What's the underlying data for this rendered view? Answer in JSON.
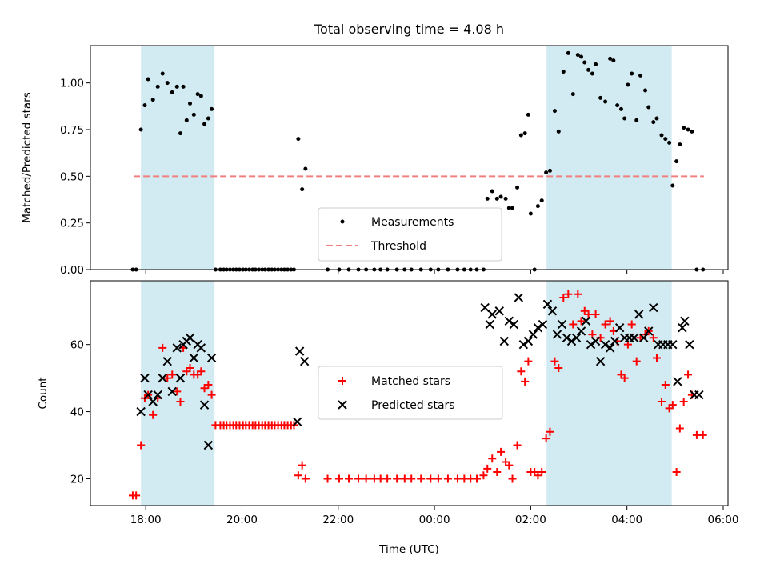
{
  "chart_data": [
    {
      "type": "scatter",
      "title": "Total observing time = 4.08 h",
      "ylabel": "Matched/Predicted stars",
      "xlabel": "",
      "x_unit": "hours (UTC)",
      "xlim": [
        16.85,
        30.1
      ],
      "ylim": [
        0.0,
        1.2
      ],
      "yticks": [
        "0.00",
        "0.25",
        "0.50",
        "0.75",
        "1.00"
      ],
      "ytick_values": [
        0,
        0.25,
        0.5,
        0.75,
        1.0
      ],
      "grid": false,
      "legend_position": "center",
      "shaded_intervals": [
        [
          17.9,
          19.43
        ],
        [
          26.33,
          28.93
        ]
      ],
      "shade_color": "#add8e6",
      "threshold": {
        "name": "Threshold",
        "value": 0.5,
        "x_range": [
          17.75,
          29.6
        ],
        "color": "#f08080",
        "style": "dashed"
      },
      "series": [
        {
          "name": "Measurements",
          "color": "#000000",
          "marker": "dot",
          "x": [
            17.73,
            17.8,
            17.9,
            17.98,
            18.05,
            18.15,
            18.25,
            18.35,
            18.45,
            18.55,
            18.65,
            18.72,
            18.78,
            18.85,
            18.92,
            19.0,
            19.08,
            19.15,
            19.22,
            19.3,
            19.37,
            19.45,
            19.55,
            19.62,
            19.68,
            19.75,
            19.82,
            19.88,
            19.95,
            20.02,
            20.08,
            20.15,
            20.22,
            20.28,
            20.35,
            20.42,
            20.48,
            20.55,
            20.62,
            20.68,
            20.75,
            20.82,
            20.88,
            20.95,
            21.02,
            21.08,
            21.17,
            21.25,
            21.32,
            21.78,
            22.02,
            22.22,
            22.42,
            22.58,
            22.75,
            22.88,
            23.02,
            23.22,
            23.38,
            23.52,
            23.72,
            23.92,
            24.08,
            24.28,
            24.48,
            24.62,
            24.75,
            24.88,
            25.02,
            25.1,
            25.2,
            25.3,
            25.38,
            25.48,
            25.55,
            25.62,
            25.72,
            25.8,
            25.88,
            25.95,
            26.0,
            26.08,
            26.15,
            26.23,
            26.32,
            26.4,
            26.5,
            26.58,
            26.68,
            26.78,
            26.88,
            26.98,
            27.05,
            27.12,
            27.2,
            27.28,
            27.35,
            27.45,
            27.55,
            27.65,
            27.72,
            27.8,
            27.88,
            27.95,
            28.02,
            28.1,
            28.2,
            28.28,
            28.38,
            28.45,
            28.55,
            28.62,
            28.72,
            28.8,
            28.88,
            28.95,
            29.03,
            29.1,
            29.18,
            29.27,
            29.35,
            29.45,
            29.58
          ],
          "y": [
            0.0,
            0.0,
            0.75,
            0.88,
            1.02,
            0.91,
            0.98,
            1.05,
            1.0,
            0.95,
            0.98,
            0.73,
            0.98,
            0.8,
            0.89,
            0.83,
            0.94,
            0.93,
            0.78,
            0.81,
            0.86,
            0.0,
            0.0,
            0.0,
            0.0,
            0.0,
            0.0,
            0.0,
            0.0,
            0.0,
            0.0,
            0.0,
            0.0,
            0.0,
            0.0,
            0.0,
            0.0,
            0.0,
            0.0,
            0.0,
            0.0,
            0.0,
            0.0,
            0.0,
            0.0,
            0.0,
            0.7,
            0.43,
            0.54,
            0.0,
            0.0,
            0.0,
            0.0,
            0.0,
            0.0,
            0.0,
            0.0,
            0.0,
            0.0,
            0.0,
            0.0,
            0.0,
            0.0,
            0.0,
            0.0,
            0.0,
            0.0,
            0.0,
            0.0,
            0.38,
            0.42,
            0.38,
            0.39,
            0.38,
            0.33,
            0.33,
            0.44,
            0.72,
            0.73,
            0.83,
            0.3,
            0.0,
            0.34,
            0.37,
            0.52,
            0.53,
            0.85,
            0.74,
            1.06,
            1.16,
            0.94,
            1.15,
            1.14,
            1.11,
            1.07,
            1.05,
            1.1,
            0.92,
            0.9,
            1.13,
            1.12,
            0.88,
            0.86,
            0.81,
            0.99,
            1.05,
            0.8,
            1.04,
            0.96,
            0.87,
            0.79,
            0.81,
            0.72,
            0.7,
            0.68,
            0.45,
            0.58,
            0.67,
            0.76,
            0.75,
            0.74,
            0.0,
            0.0
          ]
        },
        {
          "name": "Threshold",
          "color": "#f08080",
          "marker": "dashed-line",
          "x": [
            17.75,
            29.6
          ],
          "y": [
            0.5,
            0.5
          ]
        }
      ]
    },
    {
      "type": "scatter",
      "title": "",
      "ylabel": "Count",
      "xlabel": "Time (UTC)",
      "x_unit": "hours (UTC)",
      "xlim": [
        16.85,
        30.1
      ],
      "ylim": [
        12,
        79
      ],
      "yticks": [
        "20",
        "40",
        "60"
      ],
      "ytick_values": [
        20,
        40,
        60
      ],
      "xticks": [
        "18:00",
        "20:00",
        "22:00",
        "00:00",
        "02:00",
        "04:00",
        "06:00"
      ],
      "xtick_values": [
        18,
        20,
        22,
        24,
        26,
        28,
        30
      ],
      "grid": false,
      "legend_position": "center",
      "shaded_intervals": [
        [
          17.9,
          19.43
        ],
        [
          26.33,
          28.93
        ]
      ],
      "shade_color": "#add8e6",
      "series": [
        {
          "name": "Matched stars",
          "color": "#ff0000",
          "marker": "plus",
          "x": [
            17.73,
            17.8,
            17.9,
            17.98,
            18.05,
            18.15,
            18.25,
            18.35,
            18.45,
            18.55,
            18.65,
            18.72,
            18.78,
            18.85,
            18.92,
            19.0,
            19.08,
            19.15,
            19.22,
            19.3,
            19.37,
            19.45,
            19.55,
            19.62,
            19.68,
            19.75,
            19.82,
            19.88,
            19.95,
            20.02,
            20.08,
            20.15,
            20.22,
            20.28,
            20.35,
            20.42,
            20.48,
            20.55,
            20.62,
            20.68,
            20.75,
            20.82,
            20.88,
            20.95,
            21.02,
            21.08,
            21.17,
            21.25,
            21.32,
            21.78,
            22.02,
            22.22,
            22.42,
            22.58,
            22.75,
            22.88,
            23.02,
            23.22,
            23.38,
            23.52,
            23.72,
            23.92,
            24.08,
            24.28,
            24.48,
            24.62,
            24.75,
            24.88,
            25.02,
            25.1,
            25.2,
            25.3,
            25.38,
            25.48,
            25.55,
            25.62,
            25.72,
            25.8,
            25.88,
            25.95,
            26.0,
            26.08,
            26.15,
            26.23,
            26.32,
            26.4,
            26.5,
            26.58,
            26.68,
            26.78,
            26.88,
            26.98,
            27.05,
            27.12,
            27.2,
            27.28,
            27.35,
            27.45,
            27.55,
            27.65,
            27.72,
            27.8,
            27.88,
            27.95,
            28.02,
            28.1,
            28.2,
            28.28,
            28.38,
            28.45,
            28.55,
            28.62,
            28.72,
            28.8,
            28.88,
            28.95,
            29.03,
            29.1,
            29.18,
            29.27,
            29.35,
            29.45,
            29.58
          ],
          "y": [
            15,
            15,
            30,
            44,
            45,
            39,
            44,
            59,
            50,
            51,
            46,
            43,
            59,
            52,
            53,
            51,
            51,
            52,
            47,
            48,
            45,
            36,
            36,
            36,
            36,
            36,
            36,
            36,
            36,
            36,
            36,
            36,
            36,
            36,
            36,
            36,
            36,
            36,
            36,
            36,
            36,
            36,
            36,
            36,
            36,
            36,
            21,
            24,
            20,
            20,
            20,
            20,
            20,
            20,
            20,
            20,
            20,
            20,
            20,
            20,
            20,
            20,
            20,
            20,
            20,
            20,
            20,
            20,
            21,
            23,
            26,
            22,
            28,
            25,
            24,
            20,
            30,
            52,
            49,
            55,
            22,
            22,
            21,
            22,
            32,
            34,
            55,
            53,
            74,
            75,
            66,
            75,
            67,
            70,
            69,
            63,
            69,
            62,
            66,
            67,
            64,
            61,
            51,
            50,
            60,
            66,
            55,
            62,
            63,
            64,
            62,
            56,
            43,
            48,
            41,
            42,
            22,
            35,
            43,
            51,
            45,
            33,
            33
          ]
        },
        {
          "name": "Predicted stars",
          "color": "#000000",
          "marker": "x",
          "x": [
            17.9,
            17.98,
            18.05,
            18.15,
            18.25,
            18.35,
            18.45,
            18.55,
            18.65,
            18.72,
            18.78,
            18.85,
            18.92,
            19.0,
            19.08,
            19.15,
            19.22,
            19.3,
            19.37,
            21.15,
            21.2,
            21.3,
            25.05,
            25.15,
            25.2,
            25.35,
            25.45,
            25.55,
            25.65,
            25.75,
            25.85,
            25.95,
            26.05,
            26.15,
            26.25,
            26.35,
            26.45,
            26.55,
            26.65,
            26.75,
            26.85,
            26.95,
            27.05,
            27.15,
            27.25,
            27.35,
            27.45,
            27.55,
            27.65,
            27.75,
            27.85,
            27.95,
            28.05,
            28.15,
            28.25,
            28.35,
            28.45,
            28.55,
            28.65,
            28.75,
            28.85,
            28.95,
            29.05,
            29.15,
            29.2,
            29.3,
            29.4,
            29.5
          ],
          "y": [
            40,
            50,
            45,
            43,
            45,
            50,
            55,
            46,
            59,
            50,
            60,
            61,
            62,
            56,
            60,
            59,
            42,
            30,
            56,
            37,
            58,
            55,
            71,
            66,
            69,
            70,
            61,
            67,
            66,
            74,
            60,
            61,
            63,
            65,
            66,
            72,
            70,
            63,
            66,
            62,
            61,
            62,
            64,
            67,
            60,
            61,
            55,
            60,
            59,
            61,
            65,
            62,
            62,
            62,
            69,
            62,
            64,
            71,
            60,
            60,
            60,
            60,
            49,
            65,
            67,
            60,
            45,
            45
          ]
        }
      ]
    }
  ]
}
